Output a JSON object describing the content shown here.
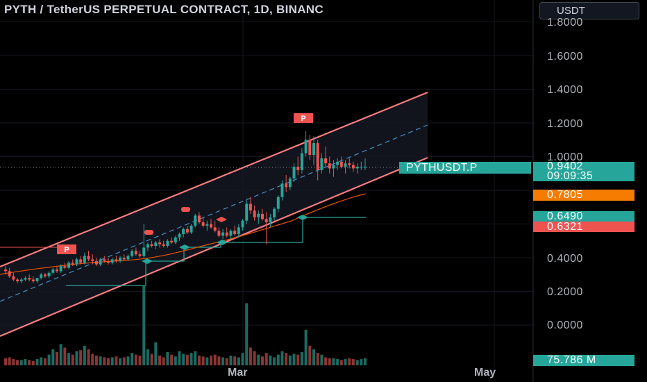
{
  "header": {
    "title": "PYTH / TetherUS PERPETUAL CONTRACT, 1D, BINANC",
    "unit_label": "USDT"
  },
  "price_axis": {
    "ticks": [
      "1.8000",
      "1.6000",
      "1.4000",
      "1.2000",
      "1.0000",
      "0.4000",
      "0.2000",
      "0.0000"
    ]
  },
  "price_tags": {
    "symbol": "PYTHUSDT.P",
    "last_price": "0.9402",
    "countdown": "09:09:35",
    "ma_value": "0.7805",
    "support_value": "0.6490",
    "red_value": "0.6321",
    "volume": "75.786 M"
  },
  "time_axis": {
    "labels": [
      "Mar",
      "May"
    ]
  },
  "markers": {
    "p_label": "P"
  },
  "colors": {
    "up": "#26a69a",
    "down": "#ef5350",
    "channel": "#f77c80",
    "midline": "#4a90c8",
    "ma": "#f57c00",
    "background": "#000000"
  },
  "chart_data": {
    "type": "candlestick",
    "title": "PYTH / TetherUS PERPETUAL CONTRACT, 1D, BINANC",
    "y_range": [
      -0.1,
      1.9
    ],
    "grid": true,
    "last_price": 0.9402,
    "ma": 0.7805,
    "levels": [
      0.649,
      0.6321
    ],
    "volume_last": "75.786 M",
    "candles": [
      [
        0.33,
        0.35,
        0.3,
        0.32
      ],
      [
        0.32,
        0.34,
        0.28,
        0.29
      ],
      [
        0.29,
        0.31,
        0.26,
        0.27
      ],
      [
        0.27,
        0.28,
        0.25,
        0.26
      ],
      [
        0.26,
        0.28,
        0.25,
        0.27
      ],
      [
        0.27,
        0.29,
        0.26,
        0.28
      ],
      [
        0.28,
        0.3,
        0.26,
        0.27
      ],
      [
        0.27,
        0.29,
        0.25,
        0.26
      ],
      [
        0.26,
        0.28,
        0.25,
        0.28
      ],
      [
        0.28,
        0.31,
        0.27,
        0.3
      ],
      [
        0.3,
        0.31,
        0.28,
        0.29
      ],
      [
        0.29,
        0.32,
        0.28,
        0.31
      ],
      [
        0.31,
        0.34,
        0.3,
        0.33
      ],
      [
        0.33,
        0.35,
        0.31,
        0.32
      ],
      [
        0.32,
        0.36,
        0.31,
        0.35
      ],
      [
        0.35,
        0.37,
        0.33,
        0.34
      ],
      [
        0.34,
        0.38,
        0.33,
        0.37
      ],
      [
        0.37,
        0.39,
        0.35,
        0.36
      ],
      [
        0.36,
        0.4,
        0.35,
        0.39
      ],
      [
        0.39,
        0.41,
        0.36,
        0.37
      ],
      [
        0.37,
        0.43,
        0.36,
        0.41
      ],
      [
        0.41,
        0.44,
        0.38,
        0.39
      ],
      [
        0.39,
        0.42,
        0.36,
        0.38
      ],
      [
        0.38,
        0.4,
        0.35,
        0.36
      ],
      [
        0.36,
        0.4,
        0.35,
        0.39
      ],
      [
        0.39,
        0.41,
        0.37,
        0.38
      ],
      [
        0.38,
        0.4,
        0.36,
        0.37
      ],
      [
        0.37,
        0.4,
        0.36,
        0.39
      ],
      [
        0.39,
        0.41,
        0.37,
        0.38
      ],
      [
        0.38,
        0.41,
        0.37,
        0.4
      ],
      [
        0.4,
        0.42,
        0.38,
        0.39
      ],
      [
        0.39,
        0.42,
        0.38,
        0.41
      ],
      [
        0.41,
        0.45,
        0.4,
        0.44
      ],
      [
        0.44,
        0.46,
        0.41,
        0.42
      ],
      [
        0.42,
        0.44,
        0.4,
        0.41
      ],
      [
        0.41,
        0.6,
        0.4,
        0.46
      ],
      [
        0.46,
        0.49,
        0.44,
        0.48
      ],
      [
        0.48,
        0.5,
        0.46,
        0.47
      ],
      [
        0.47,
        0.5,
        0.45,
        0.49
      ],
      [
        0.49,
        0.51,
        0.46,
        0.48
      ],
      [
        0.48,
        0.5,
        0.46,
        0.47
      ],
      [
        0.47,
        0.51,
        0.46,
        0.5
      ],
      [
        0.5,
        0.52,
        0.48,
        0.49
      ],
      [
        0.49,
        0.53,
        0.48,
        0.52
      ],
      [
        0.52,
        0.55,
        0.5,
        0.54
      ],
      [
        0.54,
        0.58,
        0.52,
        0.57
      ],
      [
        0.57,
        0.59,
        0.54,
        0.55
      ],
      [
        0.55,
        0.6,
        0.54,
        0.59
      ],
      [
        0.59,
        0.66,
        0.58,
        0.65
      ],
      [
        0.65,
        0.67,
        0.6,
        0.61
      ],
      [
        0.61,
        0.64,
        0.58,
        0.59
      ],
      [
        0.59,
        0.62,
        0.56,
        0.6
      ],
      [
        0.6,
        0.63,
        0.57,
        0.58
      ],
      [
        0.58,
        0.62,
        0.55,
        0.56
      ],
      [
        0.56,
        0.58,
        0.52,
        0.53
      ],
      [
        0.53,
        0.57,
        0.51,
        0.55
      ],
      [
        0.55,
        0.58,
        0.52,
        0.53
      ],
      [
        0.53,
        0.57,
        0.51,
        0.56
      ],
      [
        0.56,
        0.59,
        0.53,
        0.54
      ],
      [
        0.54,
        0.6,
        0.52,
        0.58
      ],
      [
        0.58,
        0.63,
        0.56,
        0.62
      ],
      [
        0.62,
        0.75,
        0.6,
        0.72
      ],
      [
        0.72,
        0.76,
        0.66,
        0.68
      ],
      [
        0.68,
        0.71,
        0.62,
        0.64
      ],
      [
        0.64,
        0.68,
        0.6,
        0.66
      ],
      [
        0.66,
        0.69,
        0.62,
        0.63
      ],
      [
        0.63,
        0.67,
        0.48,
        0.61
      ],
      [
        0.61,
        0.66,
        0.58,
        0.64
      ],
      [
        0.64,
        0.7,
        0.62,
        0.69
      ],
      [
        0.69,
        0.77,
        0.67,
        0.76
      ],
      [
        0.76,
        0.86,
        0.74,
        0.84
      ],
      [
        0.84,
        0.89,
        0.79,
        0.82
      ],
      [
        0.82,
        0.88,
        0.8,
        0.87
      ],
      [
        0.87,
        0.96,
        0.85,
        0.94
      ],
      [
        0.94,
        1.0,
        0.89,
        0.92
      ],
      [
        0.92,
        1.05,
        0.9,
        1.02
      ],
      [
        1.02,
        1.15,
        1.0,
        1.1
      ],
      [
        1.1,
        1.13,
        0.98,
        1.01
      ],
      [
        1.01,
        1.12,
        0.95,
        1.08
      ],
      [
        1.08,
        1.1,
        0.86,
        0.92
      ],
      [
        0.92,
        1.02,
        0.9,
        0.99
      ],
      [
        0.99,
        1.06,
        0.94,
        0.96
      ],
      [
        0.96,
        1.0,
        0.9,
        0.93
      ],
      [
        0.93,
        0.98,
        0.88,
        0.95
      ],
      [
        0.95,
        0.99,
        0.92,
        0.97
      ],
      [
        0.97,
        1.0,
        0.93,
        0.94
      ],
      [
        0.94,
        0.98,
        0.9,
        0.96
      ],
      [
        0.96,
        0.99,
        0.93,
        0.95
      ],
      [
        0.95,
        0.97,
        0.91,
        0.93
      ],
      [
        0.93,
        0.96,
        0.9,
        0.94
      ],
      [
        0.94,
        0.97,
        0.92,
        0.94
      ],
      [
        0.94,
        0.99,
        0.92,
        0.9402
      ]
    ],
    "volume": [
      8,
      9,
      7,
      6,
      6,
      7,
      6,
      5,
      7,
      9,
      8,
      12,
      18,
      15,
      24,
      20,
      14,
      12,
      16,
      17,
      22,
      18,
      13,
      11,
      10,
      9,
      8,
      9,
      10,
      8,
      9,
      10,
      14,
      12,
      11,
      90,
      18,
      13,
      26,
      11,
      9,
      15,
      12,
      10,
      16,
      13,
      12,
      14,
      16,
      11,
      10,
      9,
      11,
      12,
      10,
      9,
      8,
      11,
      10,
      9,
      14,
      70,
      20,
      16,
      12,
      10,
      14,
      11,
      9,
      12,
      16,
      14,
      11,
      13,
      12,
      15,
      40,
      22,
      18,
      14,
      12,
      9,
      8,
      8,
      7,
      6,
      7,
      8,
      7,
      6,
      7,
      8
    ]
  }
}
